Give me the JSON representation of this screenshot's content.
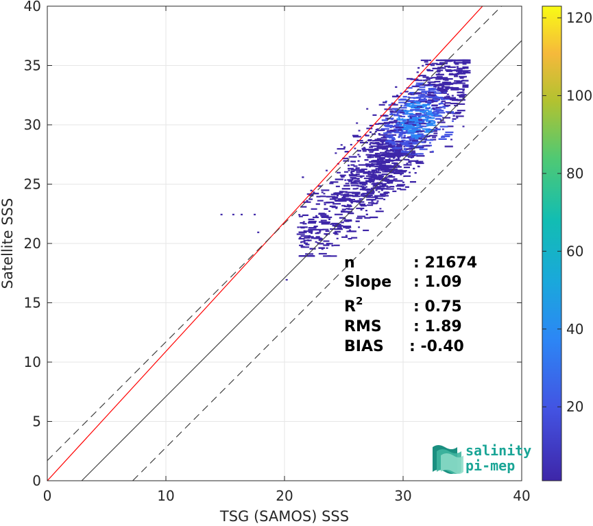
{
  "chart_data": {
    "type": "heatmap",
    "subtype": "density-scatter",
    "title": "",
    "xlabel": "TSG (SAMOS) SSS",
    "ylabel": "Satellite SSS",
    "xlim": [
      0,
      40
    ],
    "ylim": [
      0,
      40
    ],
    "xticks": [
      "0",
      "10",
      "20",
      "30",
      "40"
    ],
    "yticks": [
      "0",
      "5",
      "10",
      "15",
      "20",
      "25",
      "30",
      "35",
      "40"
    ],
    "grid": true,
    "colorbar": {
      "range": [
        1,
        123
      ],
      "ticks": [
        "20",
        "40",
        "60",
        "80",
        "100",
        "120"
      ],
      "colormap": "parula"
    },
    "lines": [
      {
        "name": "regression",
        "color": "#ff0000",
        "style": "solid",
        "x": [
          0,
          40
        ],
        "y": [
          0,
          43.6
        ]
      },
      {
        "name": "one-to-one (shifted)",
        "color": "#404040",
        "style": "solid",
        "x": [
          2.9,
          40
        ],
        "y": [
          0,
          37.1
        ]
      },
      {
        "name": "upper bound",
        "color": "#404040",
        "style": "dashed",
        "x": [
          0,
          40
        ],
        "y": [
          1.7,
          41.7
        ]
      },
      {
        "name": "lower bound",
        "color": "#404040",
        "style": "dashed",
        "x": [
          7.2,
          40
        ],
        "y": [
          0,
          32.8
        ]
      }
    ],
    "density_region": {
      "x_range": [
        14.5,
        35
      ],
      "y_range": [
        17,
        35.5
      ],
      "peak": [
        31,
        30.5
      ]
    },
    "stats": [
      {
        "label": "n",
        "value": ": 21674"
      },
      {
        "label": "Slope",
        "value": ": 1.09"
      },
      {
        "label": "R",
        "sup": "2",
        "value": ": 0.75"
      },
      {
        "label": "RMS",
        "value": ": 1.89"
      },
      {
        "label": "BIAS",
        "value": ": -0.40"
      }
    ]
  },
  "logo": {
    "line1": "salinity",
    "line2": "pi-mep"
  },
  "colors": {
    "regression": "#ff0000",
    "reference": "#404040",
    "logo": "#1aa596"
  }
}
